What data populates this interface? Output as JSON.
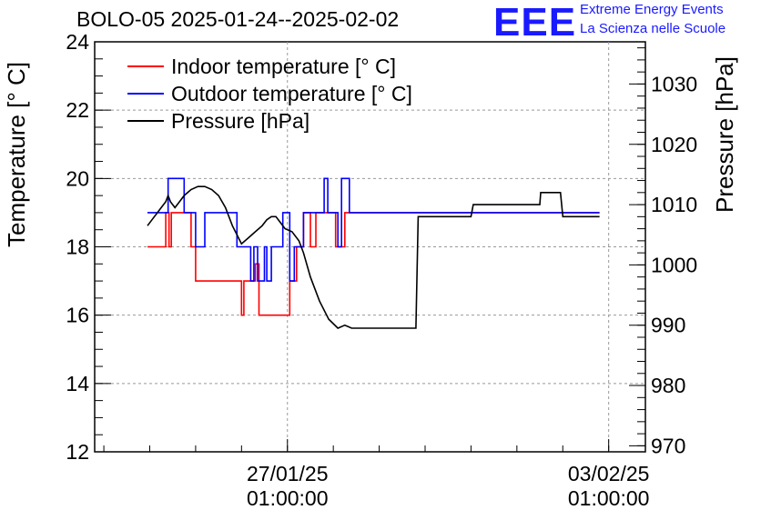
{
  "header": {
    "title": "BOLO-05 2025-01-24--2025-02-02",
    "logo_text": "EEE",
    "logo_line1": "Extreme Energy Events",
    "logo_line2": "La Scienza nelle Scuole"
  },
  "chart_data": {
    "type": "line",
    "ylabel": "Temperature [° C]",
    "y2label": "Pressure [hPa]",
    "ylim": [
      12,
      24
    ],
    "y2lim": [
      969,
      1037
    ],
    "y_ticks": [
      12,
      14,
      16,
      18,
      20,
      22,
      24
    ],
    "y2_ticks": [
      970,
      980,
      990,
      1000,
      1010,
      1020,
      1030
    ],
    "x_ticks": [
      {
        "x": 3.0,
        "label1": "27/01/25",
        "label2": "01:00:00"
      },
      {
        "x": 10.0,
        "label1": "03/02/25",
        "label2": "01:00:00"
      }
    ],
    "xlim": [
      -1.2,
      10.8
    ],
    "grid": true,
    "legend_position": "top-left",
    "colors": {
      "indoor": "#ff0000",
      "outdoor": "#0000ff",
      "pressure": "#000000"
    },
    "series": [
      {
        "name": "Indoor temperature [° C]",
        "axis": "left",
        "color": "#ff0000",
        "x": [
          -0.05,
          0.35,
          0.35,
          0.42,
          0.42,
          0.47,
          0.47,
          0.9,
          0.9,
          1.0,
          1.0,
          2.0,
          2.0,
          2.05,
          2.05,
          2.3,
          2.3,
          2.38,
          2.38,
          3.05,
          3.05,
          3.2,
          3.2,
          3.35,
          3.35,
          3.5,
          3.5,
          3.62,
          3.62,
          4.05,
          4.05,
          4.25,
          4.25,
          4.38,
          4.38,
          5.0,
          6.0,
          9.8
        ],
        "y": [
          18,
          18,
          19,
          19,
          18,
          18,
          19,
          19,
          18,
          18,
          17,
          17,
          16,
          16,
          17,
          17,
          17.5,
          17.5,
          16,
          16,
          17,
          17,
          18,
          18,
          19,
          19,
          18,
          18,
          19,
          19,
          18,
          18,
          19,
          19,
          19,
          19,
          19,
          19
        ]
      },
      {
        "name": "Outdoor temperature [° C]",
        "axis": "left",
        "color": "#0000ff",
        "x": [
          -0.05,
          0.4,
          0.4,
          0.75,
          0.75,
          1.0,
          1.0,
          1.2,
          1.2,
          1.9,
          1.9,
          2.2,
          2.2,
          2.27,
          2.27,
          2.35,
          2.35,
          2.5,
          2.5,
          2.55,
          2.55,
          2.65,
          2.65,
          2.9,
          2.9,
          3.05,
          3.05,
          3.15,
          3.15,
          3.35,
          3.35,
          3.8,
          3.8,
          3.88,
          3.88,
          4.1,
          4.1,
          4.18,
          4.18,
          4.35,
          4.35,
          5.25,
          5.25,
          9.8
        ],
        "y": [
          19,
          19,
          20,
          20,
          19,
          19,
          18,
          18,
          19,
          19,
          18,
          18,
          17,
          17,
          18,
          18,
          17,
          17,
          18,
          18,
          17,
          17,
          18,
          18,
          19,
          19,
          17,
          17,
          18,
          18,
          19,
          19,
          20,
          20,
          19,
          19,
          18,
          18,
          20,
          20,
          19,
          19,
          19,
          19
        ]
      },
      {
        "name": "Pressure [hPa]",
        "axis": "right",
        "color": "#000000",
        "x": [
          -0.05,
          0.05,
          0.15,
          0.25,
          0.35,
          0.4,
          0.45,
          0.55,
          0.65,
          0.75,
          0.9,
          1.05,
          1.2,
          1.35,
          1.5,
          1.65,
          1.8,
          2.0,
          2.15,
          2.3,
          2.45,
          2.55,
          2.65,
          2.75,
          2.85,
          2.95,
          3.1,
          3.25,
          3.35,
          3.5,
          3.7,
          3.9,
          4.1,
          4.25,
          4.4,
          4.5,
          5.8,
          5.85,
          7.0,
          7.05,
          8.5,
          8.52,
          8.95,
          9.0,
          9.8
        ],
        "y": [
          1006.5,
          1007.5,
          1008.5,
          1009.5,
          1010.5,
          1011.5,
          1010.5,
          1009.5,
          1010.5,
          1011.5,
          1012.5,
          1013,
          1013,
          1012.5,
          1011.5,
          1009.5,
          1006.5,
          1003.5,
          1004.5,
          1005.5,
          1006.5,
          1007.5,
          1008,
          1008,
          1007,
          1006,
          1005.5,
          1004,
          1002,
          998,
          994,
          991,
          989.5,
          990,
          989.5,
          989.5,
          989.5,
          1008,
          1008,
          1010,
          1010,
          1012,
          1012,
          1008,
          1008
        ]
      }
    ]
  }
}
